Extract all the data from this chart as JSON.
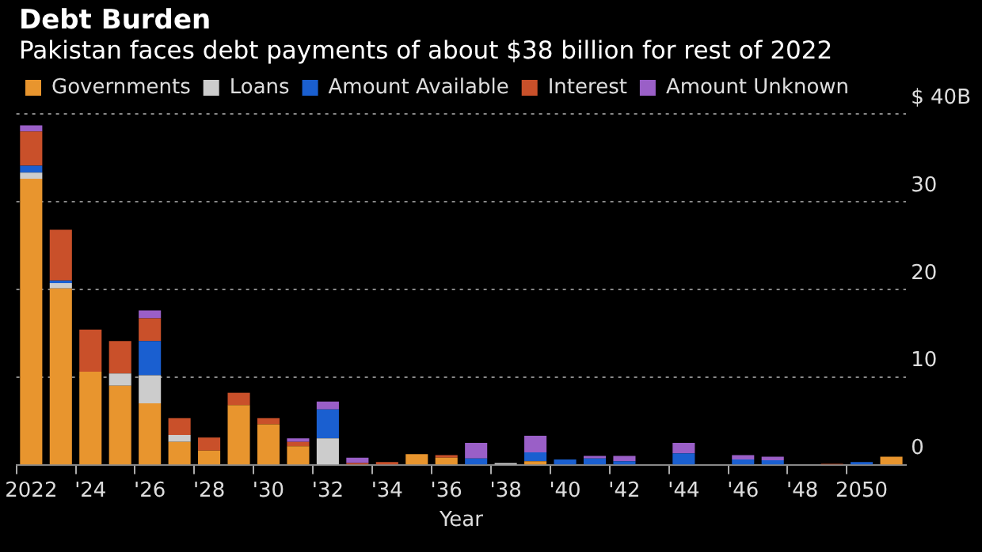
{
  "chart_data": {
    "type": "bar",
    "title": "Debt Burden",
    "subtitle": "Pakistan faces debt payments of about $38 billion for rest of 2022",
    "xlabel": "Year",
    "categories": [
      "2022",
      null,
      "'24",
      null,
      "'26",
      null,
      "'28",
      null,
      "'30",
      null,
      "'32",
      null,
      "'34",
      null,
      "'36",
      null,
      "'38",
      null,
      "'40",
      null,
      "'42",
      null,
      "'44",
      null,
      "'46",
      null,
      "'48",
      null,
      "2050",
      null
    ],
    "stacked": true,
    "legend": "top left",
    "grid": "y",
    "ylim": [
      0,
      40
    ],
    "yticks": [
      0,
      10,
      20,
      30,
      {
        "value": 40,
        "label": "$ 40B"
      }
    ],
    "series": [
      {
        "name": "Governments",
        "color": "#e8952e",
        "values": [
          32.6,
          20.1,
          10.6,
          9.0,
          7.0,
          2.6,
          1.6,
          6.8,
          4.6,
          2.1,
          0,
          0,
          0,
          1.2,
          0.8,
          0,
          0,
          0.4,
          0,
          0,
          0,
          0,
          0,
          0,
          0,
          0,
          0,
          0,
          0,
          0.9
        ]
      },
      {
        "name": "Loans",
        "color": "#cccccc",
        "values": [
          0.7,
          0.6,
          0,
          1.4,
          3.2,
          0.8,
          0,
          0,
          0,
          0,
          3.0,
          0,
          0,
          0,
          0,
          0,
          0.2,
          0,
          0,
          0,
          0,
          0,
          0,
          0,
          0,
          0,
          0,
          0,
          0,
          0
        ]
      },
      {
        "name": "Amount Available",
        "color": "#1a5fd0",
        "values": [
          0.8,
          0.3,
          0,
          0,
          3.9,
          0,
          0,
          0,
          0,
          0,
          3.3,
          0,
          0,
          0,
          0,
          0.7,
          0,
          1.0,
          0.6,
          0.7,
          0.4,
          0,
          1.3,
          0,
          0.6,
          0.5,
          0,
          0,
          0.3,
          0
        ]
      },
      {
        "name": "Interest",
        "color": "#c9502a",
        "values": [
          3.9,
          5.8,
          4.8,
          3.7,
          2.6,
          1.9,
          1.5,
          1.4,
          0.7,
          0.5,
          0,
          0.2,
          0.3,
          0,
          0.3,
          0,
          0,
          0,
          0,
          0,
          0,
          0,
          0,
          0,
          0,
          0,
          0,
          0.1,
          0,
          0
        ]
      },
      {
        "name": "Amount Unknown",
        "color": "#9a5fc7",
        "values": [
          0.7,
          0,
          0,
          0,
          0.9,
          0,
          0,
          0,
          0,
          0.4,
          0.9,
          0.6,
          0,
          0,
          0,
          1.8,
          0,
          1.9,
          0,
          0.3,
          0.6,
          0,
          1.2,
          0,
          0.5,
          0.4,
          0,
          0,
          0,
          0
        ]
      }
    ]
  }
}
